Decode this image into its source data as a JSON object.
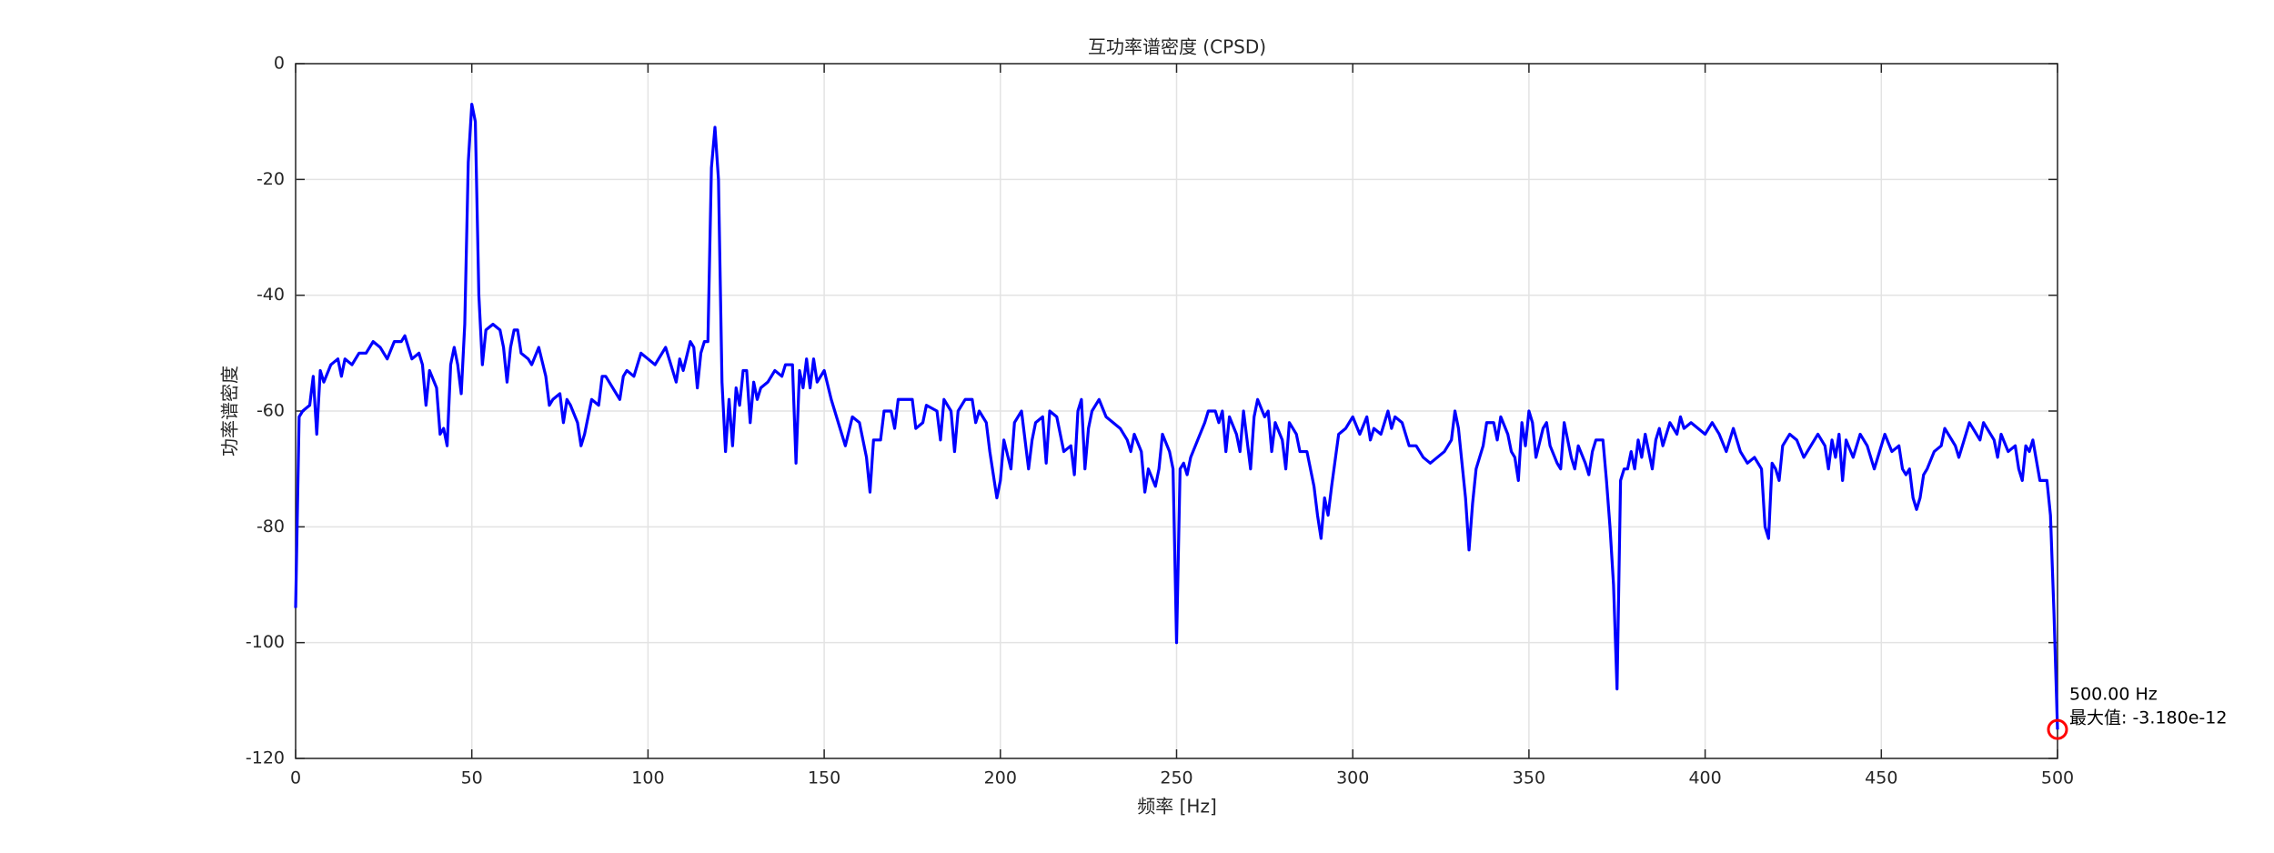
{
  "chart_data": {
    "type": "line",
    "title": "互功率谱密度 (CPSD)",
    "xlabel": "频率 [Hz]",
    "ylabel": "功率谱密度",
    "color": "#0000ff",
    "xlim": [
      0,
      500
    ],
    "ylim": [
      -120,
      0
    ],
    "xticks": [
      0,
      50,
      100,
      150,
      200,
      250,
      300,
      350,
      400,
      450,
      500
    ],
    "yticks": [
      -120,
      -100,
      -80,
      -60,
      -40,
      -20,
      0
    ],
    "grid": true,
    "annotations": [
      "500.00 Hz",
      "最大值: -3.180e-12"
    ],
    "marker_color": "#ff0000",
    "x": [
      0,
      1,
      2,
      4,
      5,
      6,
      7,
      8,
      10,
      12,
      13,
      14,
      16,
      18,
      20,
      22,
      24,
      26,
      28,
      30,
      31,
      33,
      35,
      36,
      37,
      38,
      40,
      41,
      42,
      43,
      44,
      45,
      46,
      47,
      48,
      49,
      50,
      51,
      52,
      53,
      54,
      56,
      58,
      59,
      60,
      61,
      62,
      63,
      64,
      66,
      67,
      69,
      71,
      72,
      73,
      75,
      76,
      77,
      78,
      80,
      81,
      82,
      84,
      86,
      87,
      88,
      90,
      92,
      93,
      94,
      96,
      98,
      100,
      102,
      104,
      105,
      106,
      108,
      109,
      110,
      112,
      113,
      114,
      115,
      116,
      117,
      118,
      119,
      120,
      121,
      122,
      123,
      124,
      125,
      126,
      127,
      128,
      129,
      130,
      131,
      132,
      134,
      136,
      138,
      139,
      141,
      142,
      143,
      144,
      145,
      146,
      147,
      148,
      150,
      152,
      154,
      156,
      158,
      160,
      162,
      163,
      164,
      166,
      167,
      169,
      170,
      171,
      173,
      175,
      176,
      178,
      179,
      182,
      183,
      184,
      186,
      187,
      188,
      190,
      192,
      193,
      194,
      196,
      197,
      199,
      200,
      201,
      203,
      204,
      206,
      208,
      209,
      210,
      212,
      213,
      214,
      216,
      218,
      220,
      221,
      222,
      223,
      224,
      225,
      226,
      228,
      230,
      232,
      234,
      236,
      237,
      238,
      240,
      241,
      242,
      244,
      245,
      246,
      248,
      249,
      250,
      251,
      252,
      253,
      254,
      256,
      258,
      259,
      261,
      262,
      263,
      264,
      265,
      267,
      268,
      269,
      270,
      271,
      272,
      273,
      275,
      276,
      277,
      278,
      280,
      281,
      282,
      284,
      285,
      287,
      289,
      290,
      291,
      292,
      293,
      294,
      296,
      298,
      300,
      302,
      304,
      305,
      306,
      308,
      310,
      311,
      312,
      314,
      316,
      318,
      320,
      322,
      324,
      326,
      328,
      329,
      330,
      331,
      332,
      333,
      334,
      335,
      336,
      337,
      338,
      340,
      341,
      342,
      344,
      345,
      346,
      347,
      348,
      349,
      350,
      351,
      352,
      354,
      355,
      356,
      358,
      359,
      360,
      362,
      363,
      364,
      366,
      367,
      368,
      369,
      371,
      372,
      373,
      374,
      375,
      376,
      377,
      378,
      379,
      380,
      381,
      382,
      383,
      385,
      386,
      387,
      388,
      390,
      392,
      393,
      394,
      396,
      398,
      400,
      402,
      404,
      406,
      408,
      410,
      412,
      414,
      416,
      417,
      418,
      419,
      420,
      421,
      422,
      424,
      426,
      428,
      430,
      432,
      434,
      435,
      436,
      437,
      438,
      439,
      440,
      442,
      444,
      446,
      448,
      450,
      451,
      453,
      455,
      456,
      457,
      458,
      459,
      460,
      461,
      462,
      463,
      465,
      467,
      468,
      470,
      471,
      472,
      474,
      475,
      476,
      478,
      479,
      480,
      482,
      483,
      484,
      486,
      488,
      489,
      490,
      491,
      492,
      493,
      495,
      497,
      498,
      499,
      500
    ],
    "values": [
      -94,
      -61,
      -60,
      -59,
      -54,
      -64,
      -53,
      -55,
      -52,
      -51,
      -54,
      -51,
      -52,
      -50,
      -50,
      -48,
      -49,
      -51,
      -48,
      -48,
      -47,
      -51,
      -50,
      -52,
      -59,
      -53,
      -56,
      -64,
      -63,
      -66,
      -52,
      -49,
      -52,
      -57,
      -45,
      -17,
      -7,
      -10,
      -40,
      -52,
      -46,
      -45,
      -46,
      -49,
      -55,
      -49,
      -46,
      -46,
      -50,
      -51,
      -52,
      -49,
      -54,
      -59,
      -58,
      -57,
      -62,
      -58,
      -59,
      -62,
      -66,
      -64,
      -58,
      -59,
      -54,
      -54,
      -56,
      -58,
      -54,
      -53,
      -54,
      -50,
      -51,
      -52,
      -50,
      -49,
      -51,
      -55,
      -51,
      -53,
      -48,
      -49,
      -56,
      -50,
      -48,
      -48,
      -18,
      -11,
      -20,
      -55,
      -67,
      -58,
      -66,
      -56,
      -59,
      -53,
      -53,
      -62,
      -55,
      -58,
      -56,
      -55,
      -53,
      -54,
      -52,
      -52,
      -69,
      -53,
      -56,
      -51,
      -56,
      -51,
      -55,
      -53,
      -58,
      -62,
      -66,
      -61,
      -62,
      -68,
      -74,
      -65,
      -65,
      -60,
      -60,
      -63,
      -58,
      -58,
      -58,
      -63,
      -62,
      -59,
      -60,
      -65,
      -58,
      -60,
      -67,
      -60,
      -58,
      -58,
      -62,
      -60,
      -62,
      -67,
      -75,
      -72,
      -65,
      -70,
      -62,
      -60,
      -70,
      -65,
      -62,
      -61,
      -69,
      -60,
      -61,
      -67,
      -66,
      -71,
      -60,
      -58,
      -70,
      -63,
      -60,
      -58,
      -61,
      -62,
      -63,
      -65,
      -67,
      -64,
      -67,
      -74,
      -70,
      -73,
      -70,
      -64,
      -67,
      -70,
      -100,
      -70,
      -69,
      -71,
      -68,
      -65,
      -62,
      -60,
      -60,
      -62,
      -60,
      -67,
      -61,
      -64,
      -67,
      -60,
      -65,
      -70,
      -61,
      -58,
      -61,
      -60,
      -67,
      -62,
      -65,
      -70,
      -62,
      -64,
      -67,
      -67,
      -73,
      -78,
      -82,
      -75,
      -78,
      -73,
      -64,
      -63,
      -61,
      -64,
      -61,
      -65,
      -63,
      -64,
      -60,
      -63,
      -61,
      -62,
      -66,
      -66,
      -68,
      -69,
      -68,
      -67,
      -65,
      -60,
      -63,
      -69,
      -75,
      -84,
      -76,
      -70,
      -68,
      -66,
      -62,
      -62,
      -65,
      -61,
      -64,
      -67,
      -68,
      -72,
      -62,
      -66,
      -60,
      -62,
      -68,
      -63,
      -62,
      -66,
      -69,
      -70,
      -62,
      -68,
      -70,
      -66,
      -69,
      -71,
      -67,
      -65,
      -65,
      -72,
      -80,
      -90,
      -108,
      -72,
      -70,
      -70,
      -67,
      -70,
      -65,
      -68,
      -64,
      -70,
      -65,
      -63,
      -66,
      -62,
      -64,
      -61,
      -63,
      -62,
      -63,
      -64,
      -62,
      -64,
      -67,
      -63,
      -67,
      -69,
      -68,
      -70,
      -80,
      -82,
      -69,
      -70,
      -72,
      -66,
      -64,
      -65,
      -68,
      -66,
      -64,
      -66,
      -70,
      -65,
      -68,
      -64,
      -72,
      -65,
      -68,
      -64,
      -66,
      -70,
      -66,
      -64,
      -67,
      -66,
      -70,
      -71,
      -70,
      -75,
      -77,
      -75,
      -71,
      -70,
      -67,
      -66,
      -63,
      -65,
      -66,
      -68,
      -64,
      -62,
      -63,
      -65,
      -62,
      -63,
      -65,
      -68,
      -64,
      -67,
      -66,
      -70,
      -72,
      -66,
      -67,
      -65,
      -72,
      -72,
      -78,
      -95,
      -115
    ]
  }
}
